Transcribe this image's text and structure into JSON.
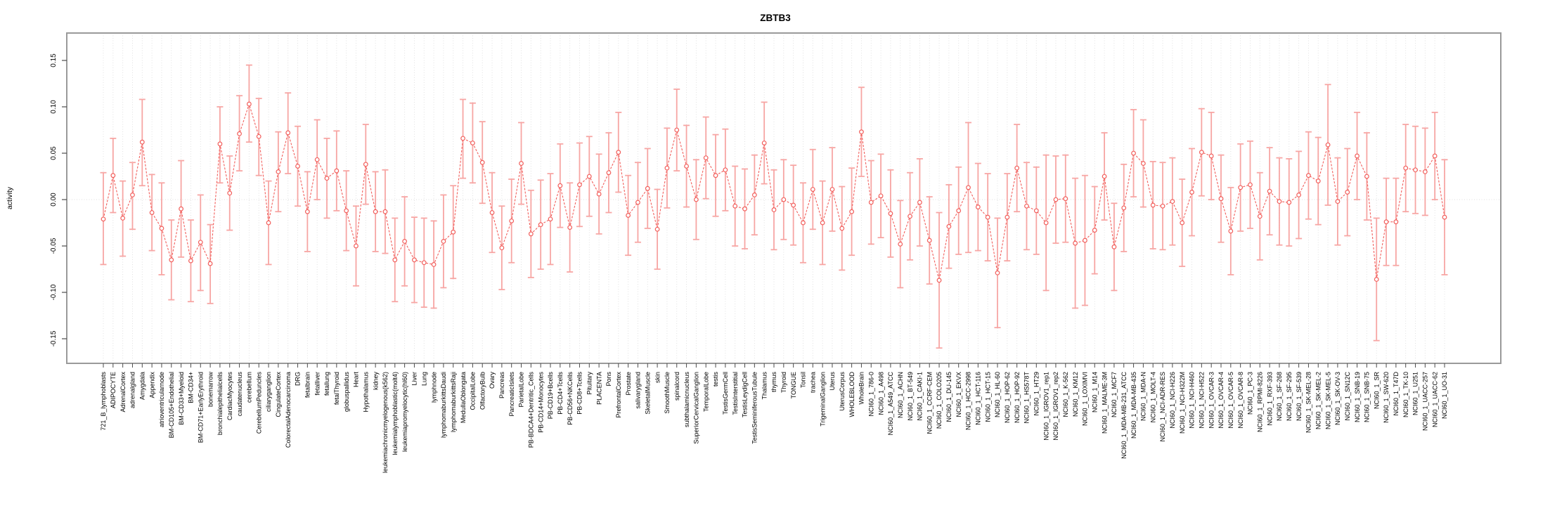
{
  "chart_data": {
    "type": "line",
    "title": "ZBTB3",
    "ylabel": "activity",
    "xlabel": "",
    "ylim": [
      -0.17,
      0.17
    ],
    "yticks": [
      -0.15,
      -0.1,
      -0.05,
      0.0,
      0.05,
      0.1,
      0.15
    ],
    "ytick_labels": [
      "-0.15",
      "-0.10",
      "-0.05",
      "0.00",
      "0.05",
      "0.10",
      "0.15"
    ],
    "grid": "dotted-vertical-per-category-and-zero-line",
    "legend": "none",
    "marker": "open-circle",
    "error_bars": true,
    "colors": {
      "series": "#f25f5c",
      "error_bars": "#f79d9b",
      "grid": "#dedede",
      "box": "#9a9a9a",
      "tick": "#4d4d4d",
      "text": "#000000",
      "background": "#ffffff"
    },
    "categories": [
      "721_B_lymphoblasts",
      "ADIPOCYTE",
      "AdrenalCortex",
      "adrenalgland",
      "Amygdala",
      "Appendix",
      "atrioventricularnode",
      "BM-CD105+Endothelial",
      "BM-CD33+Myeloid",
      "BM-CD34+",
      "BM-CD71+EarlyErythroid",
      "bonemarrow",
      "bronchialepithelialcells",
      "CardiacMyocytes",
      "caudatenucleus",
      "cerebellum",
      "CerebellumPeduncles",
      "ciliaryganglion",
      "CingulateCortex",
      "ColorectalAdenocarcinoma",
      "DRG",
      "fetalbrain",
      "fetalliver",
      "fetallung",
      "fetalThyroid",
      "globuspallidus",
      "Heart",
      "Hypothalamus",
      "kidney",
      "leukemiachronicmyelogenous(k562)",
      "leukemialymphoblastic(molt4)",
      "leukemiapromyelocytic(hl60)",
      "Liver",
      "Lung",
      "lymphnode",
      "lymphomaburkittsDaudi",
      "lymphomaburkittsRaji",
      "MedullaOblongata",
      "OccipitalLobe",
      "OlfactoryBulb",
      "Ovary",
      "Pancreas",
      "PancreaticIslets",
      "ParietalLobe",
      "PB-BDCA4+Dentritic_Cells",
      "PB-CD14+Monocytes",
      "PB-CD19+Bcells",
      "PB-CD4+Tcells",
      "PB-CD56+NKCells",
      "PB-CD8+Tcells",
      "Pituitary",
      "PLACENTA",
      "Pons",
      "PrefrontalCortex",
      "Prostate",
      "salivarygland",
      "SkeletalMuscle",
      "skin",
      "SmoothMuscle",
      "spinalcord",
      "subthalamicnucleus",
      "SuperiorCervicalGanglion",
      "TemporalLobe",
      "testis",
      "TestisGermCell",
      "TestisInterstitial",
      "TestisLeydigCell",
      "TestisSeminiferousTubule",
      "Thalamus",
      "thymus",
      "Thyroid",
      "TONGUE",
      "Tonsil",
      "trachea",
      "TrigeminalGanglion",
      "Uterus",
      "UterusCorpus",
      "WHOLEBLOOD",
      "WholeBrain",
      "NCI60_1_786-0",
      "NCI60_1_A498",
      "NCI60_1_A549_ATCC",
      "NCI60_1_ACHN",
      "NCI60_1_BT-549",
      "NCI60_1_CAKI-1",
      "NCI60_1_CCRF-CEM",
      "NCI60_1_COLO205",
      "NCI60_1_DU-145",
      "NCI60_1_EKVX",
      "NCI60_1_HCC-2998",
      "NCI60_1_HCT-116",
      "NCI60_1_HCT-15",
      "NCI60_1_HL-60",
      "NCI60_1_HOP-62",
      "NCI60_1_HOP-92",
      "NCI60_1_HS578T",
      "NCI60_1_HT29",
      "NCI60_1_IGROV1_rep1",
      "NCI60_1_IGROV1_rep2",
      "NCI60_1_K-562",
      "NCI60_1_KM12",
      "NCI60_1_LOXIMVI",
      "NCI60_1_M14",
      "NCI60_1_MALME-3M",
      "NCI60_1_MCF7",
      "NCI60_1_MDA-MB-231_ATCC",
      "NCI60_1_MDA-MB-435",
      "NCI60_1_MDA-N",
      "NCI60_1_MOLT-4",
      "NCI60_1_NCI-ADR-RES",
      "NCI60_1_NCI-H226",
      "NCI60_1_NCI-H322M",
      "NCI60_1_NCI-H460",
      "NCI60_1_NCI-H522",
      "NCI60_1_OVCAR-3",
      "NCI60_1_OVCAR-4",
      "NCI60_1_OVCAR-5",
      "NCI60_1_OVCAR-8",
      "NCI60_1_PC-3",
      "NCI60_1_RPMI-8226",
      "NCI60_1_RXF-393",
      "NCI60_1_SF-268",
      "NCI60_1_SF-295",
      "NCI60_1_SF-539",
      "NCI60_1_SK-MEL-28",
      "NCI60_1_SK-MEL-2",
      "NCI60_1_SK-MEL-5",
      "NCI60_1_SK-OV-3",
      "NCI60_1_SN12C",
      "NCI60_1_SNB-19",
      "NCI60_1_SNB-75",
      "NCI60_1_SR",
      "NCI60_1_SW-620",
      "NCI60_1_T47D",
      "NCI60_1_TK-10",
      "NCI60_1_U251",
      "NCI60_1_UACC-257",
      "NCI60_1_UACC-62",
      "NCI60_1_UO-31"
    ],
    "series": [
      {
        "name": "activity",
        "values": [
          -0.021,
          0.026,
          -0.02,
          0.005,
          0.062,
          -0.014,
          -0.031,
          -0.065,
          -0.01,
          -0.066,
          -0.046,
          -0.069,
          0.06,
          0.007,
          0.071,
          0.103,
          0.068,
          -0.025,
          0.03,
          0.072,
          0.036,
          -0.013,
          0.043,
          0.023,
          0.031,
          -0.012,
          -0.05,
          0.038,
          -0.013,
          -0.013,
          -0.065,
          -0.045,
          -0.065,
          -0.068,
          -0.07,
          -0.045,
          -0.035,
          0.066,
          0.061,
          0.04,
          -0.014,
          -0.052,
          -0.023,
          0.039,
          -0.037,
          -0.027,
          -0.021,
          0.015,
          -0.03,
          0.016,
          0.025,
          0.006,
          0.029,
          0.051,
          -0.017,
          -0.003,
          0.012,
          -0.032,
          0.034,
          0.075,
          0.036,
          0.0,
          0.045,
          0.026,
          0.032,
          -0.007,
          -0.01,
          0.005,
          0.061,
          -0.011,
          0.0,
          -0.006,
          -0.025,
          0.011,
          -0.025,
          0.011,
          -0.031,
          -0.013,
          0.073,
          -0.003,
          0.004,
          -0.015,
          -0.048,
          -0.018,
          -0.003,
          -0.044,
          -0.087,
          -0.029,
          -0.012,
          0.013,
          -0.008,
          -0.019,
          -0.079,
          -0.019,
          0.034,
          -0.007,
          -0.012,
          -0.025,
          0.0,
          0.001,
          -0.047,
          -0.044,
          -0.033,
          0.025,
          -0.051,
          -0.009,
          0.05,
          0.039,
          -0.006,
          -0.007,
          -0.002,
          -0.025,
          0.008,
          0.051,
          0.047,
          0.001,
          -0.034,
          0.013,
          0.016,
          -0.018,
          0.009,
          -0.002,
          -0.003,
          0.005,
          0.026,
          0.02,
          0.059,
          -0.002,
          0.008,
          0.047,
          0.025,
          -0.086,
          -0.024,
          -0.024,
          0.034,
          0.032,
          0.03,
          0.047,
          -0.019
        ],
        "err_low": [
          -0.07,
          -0.014,
          -0.061,
          -0.032,
          0.015,
          -0.055,
          -0.081,
          -0.108,
          -0.062,
          -0.11,
          -0.098,
          -0.112,
          0.018,
          -0.033,
          0.031,
          0.062,
          0.026,
          -0.07,
          -0.013,
          0.028,
          -0.007,
          -0.056,
          0.0,
          -0.02,
          -0.012,
          -0.055,
          -0.093,
          -0.005,
          -0.056,
          -0.058,
          -0.11,
          -0.093,
          -0.111,
          -0.116,
          -0.117,
          -0.095,
          -0.085,
          0.023,
          0.018,
          -0.004,
          -0.057,
          -0.097,
          -0.068,
          -0.005,
          -0.084,
          -0.075,
          -0.07,
          -0.03,
          -0.078,
          -0.029,
          -0.018,
          -0.037,
          -0.014,
          0.008,
          -0.06,
          -0.046,
          -0.031,
          -0.075,
          -0.009,
          0.031,
          -0.008,
          -0.043,
          0.001,
          -0.018,
          -0.012,
          -0.05,
          -0.053,
          -0.038,
          0.017,
          -0.054,
          -0.043,
          -0.049,
          -0.068,
          -0.032,
          -0.07,
          -0.034,
          -0.076,
          -0.06,
          0.025,
          -0.048,
          -0.041,
          -0.062,
          -0.095,
          -0.065,
          -0.05,
          -0.091,
          -0.16,
          -0.074,
          -0.059,
          -0.057,
          -0.055,
          -0.066,
          -0.138,
          -0.066,
          -0.013,
          -0.054,
          -0.059,
          -0.098,
          -0.047,
          -0.046,
          -0.117,
          -0.114,
          -0.08,
          -0.022,
          -0.098,
          -0.056,
          0.003,
          -0.008,
          -0.053,
          -0.054,
          -0.049,
          -0.072,
          -0.039,
          0.004,
          0.0,
          -0.046,
          -0.081,
          -0.034,
          -0.031,
          -0.065,
          -0.038,
          -0.049,
          -0.05,
          -0.042,
          -0.021,
          -0.027,
          -0.006,
          -0.049,
          -0.039,
          0.0,
          -0.022,
          -0.152,
          -0.071,
          -0.071,
          -0.013,
          -0.015,
          -0.017,
          0.0,
          -0.081
        ],
        "err_high": [
          0.029,
          0.066,
          0.02,
          0.04,
          0.108,
          0.027,
          0.018,
          -0.022,
          0.042,
          -0.022,
          0.005,
          -0.027,
          0.1,
          0.047,
          0.112,
          0.145,
          0.109,
          0.02,
          0.073,
          0.115,
          0.079,
          0.03,
          0.086,
          0.066,
          0.074,
          0.031,
          -0.007,
          0.081,
          0.03,
          0.032,
          -0.02,
          0.003,
          -0.019,
          -0.02,
          -0.023,
          0.005,
          0.015,
          0.108,
          0.104,
          0.084,
          0.029,
          -0.007,
          0.022,
          0.083,
          0.01,
          0.021,
          0.028,
          0.06,
          0.018,
          0.061,
          0.068,
          0.049,
          0.072,
          0.094,
          0.026,
          0.04,
          0.055,
          0.011,
          0.077,
          0.119,
          0.08,
          0.043,
          0.089,
          0.07,
          0.076,
          0.036,
          0.033,
          0.048,
          0.105,
          0.032,
          0.043,
          0.037,
          0.018,
          0.054,
          0.02,
          0.056,
          0.014,
          0.034,
          0.121,
          0.042,
          0.049,
          0.032,
          -0.001,
          0.029,
          0.044,
          0.003,
          -0.014,
          0.016,
          0.035,
          0.083,
          0.039,
          0.028,
          -0.02,
          0.028,
          0.081,
          0.04,
          0.035,
          0.048,
          0.047,
          0.048,
          0.023,
          0.026,
          0.014,
          0.072,
          -0.004,
          0.038,
          0.097,
          0.086,
          0.041,
          0.04,
          0.045,
          0.022,
          0.055,
          0.098,
          0.094,
          0.048,
          0.013,
          0.06,
          0.063,
          0.029,
          0.056,
          0.045,
          0.044,
          0.052,
          0.073,
          0.067,
          0.124,
          0.045,
          0.055,
          0.094,
          0.072,
          -0.02,
          0.023,
          0.023,
          0.081,
          0.079,
          0.077,
          0.094,
          0.043
        ]
      }
    ]
  }
}
